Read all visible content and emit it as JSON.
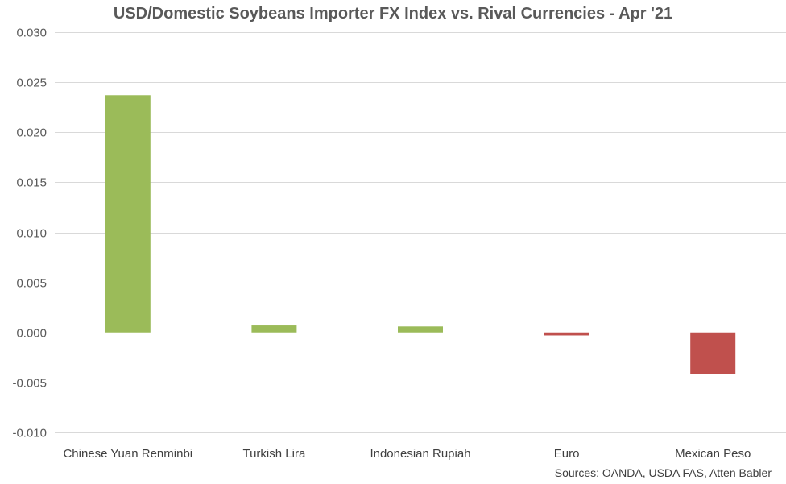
{
  "chart_data": {
    "type": "bar",
    "title": "USD/Domestic Soybeans Importer FX Index vs. Rival Currencies - Apr '21",
    "source": "Sources: OANDA, USDA FAS, Atten Babler",
    "xlabel": "",
    "ylabel": "",
    "categories": [
      "Chinese Yuan Renminbi",
      "Turkish Lira",
      "Indonesian Rupiah",
      "Euro",
      "Mexican Peso"
    ],
    "values": [
      0.0237,
      0.0007,
      0.0006,
      -0.0003,
      -0.0042
    ],
    "ylim": [
      -0.01,
      0.03
    ],
    "yticks": [
      "-0.010",
      "-0.005",
      "0.000",
      "0.005",
      "0.010",
      "0.015",
      "0.020",
      "0.025",
      "0.030"
    ],
    "grid": true,
    "legend": "none",
    "colors": {
      "positive": "#9BBB59",
      "negative": "#C0504D",
      "grid": "#D9D9D9"
    }
  }
}
